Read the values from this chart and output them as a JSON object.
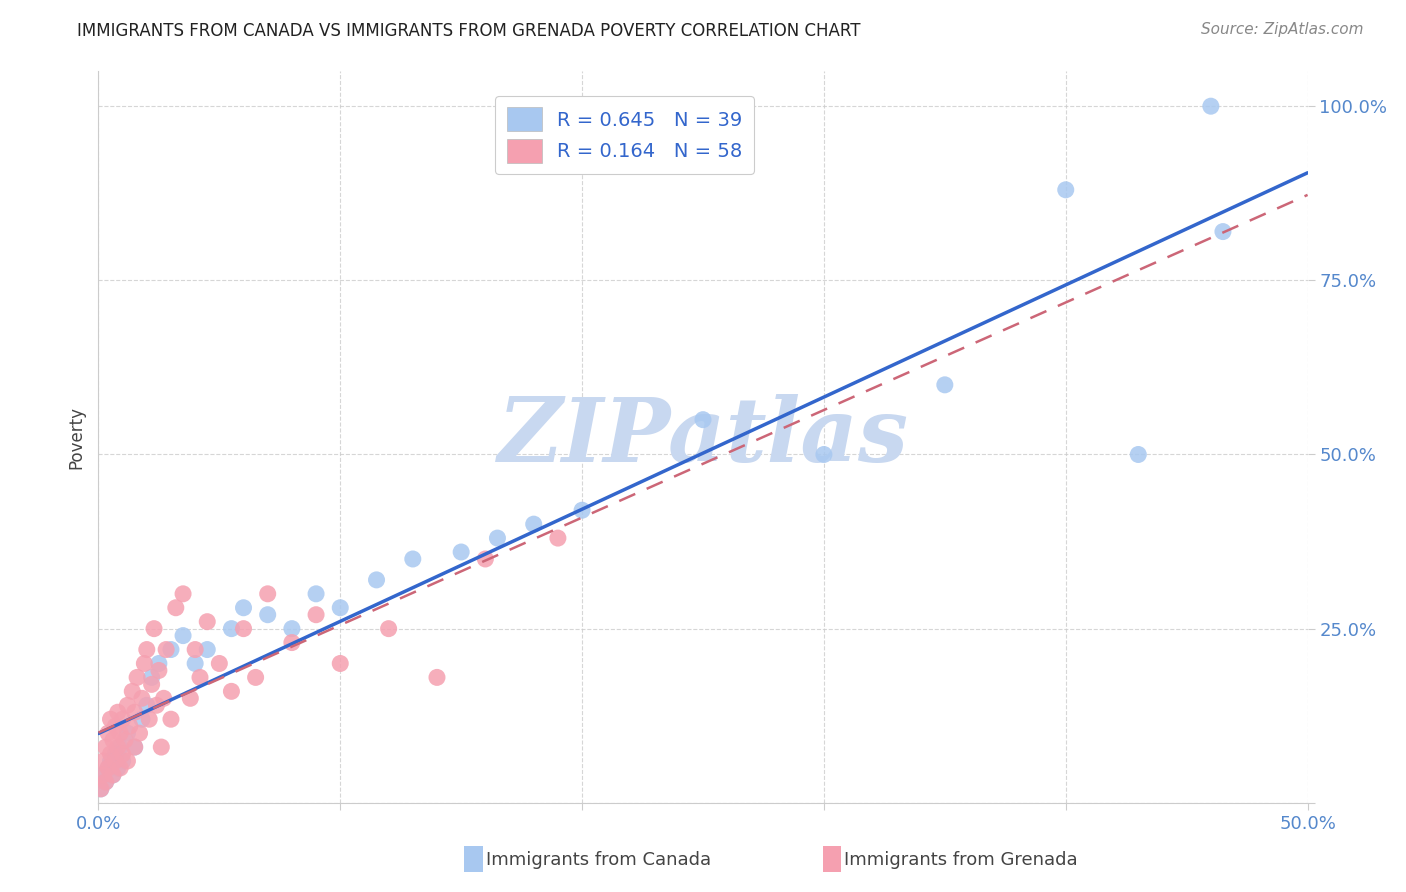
{
  "title": "IMMIGRANTS FROM CANADA VS IMMIGRANTS FROM GRENADA POVERTY CORRELATION CHART",
  "source": "Source: ZipAtlas.com",
  "ylabel": "Poverty",
  "xlim": [
    0.0,
    0.5
  ],
  "ylim": [
    0.0,
    1.05
  ],
  "canada_R": 0.645,
  "canada_N": 39,
  "grenada_R": 0.164,
  "grenada_N": 58,
  "canada_color": "#a8c8f0",
  "grenada_color": "#f5a0b0",
  "canada_line_color": "#3366cc",
  "grenada_line_color": "#cc6677",
  "watermark_color": "#c8d8f0",
  "canada_x": [
    0.001,
    0.002,
    0.003,
    0.004,
    0.005,
    0.006,
    0.007,
    0.008,
    0.009,
    0.01,
    0.012,
    0.015,
    0.018,
    0.02,
    0.022,
    0.025,
    0.03,
    0.035,
    0.04,
    0.045,
    0.055,
    0.06,
    0.07,
    0.08,
    0.09,
    0.1,
    0.115,
    0.13,
    0.15,
    0.165,
    0.18,
    0.2,
    0.25,
    0.3,
    0.35,
    0.4,
    0.43,
    0.46,
    0.465
  ],
  "canada_y": [
    0.02,
    0.04,
    0.03,
    0.05,
    0.06,
    0.04,
    0.07,
    0.05,
    0.08,
    0.06,
    0.1,
    0.08,
    0.12,
    0.14,
    0.18,
    0.2,
    0.22,
    0.24,
    0.2,
    0.22,
    0.25,
    0.28,
    0.27,
    0.25,
    0.3,
    0.28,
    0.32,
    0.35,
    0.36,
    0.38,
    0.4,
    0.42,
    0.55,
    0.5,
    0.6,
    0.88,
    0.5,
    1.0,
    0.82
  ],
  "grenada_x": [
    0.001,
    0.002,
    0.002,
    0.003,
    0.003,
    0.004,
    0.004,
    0.005,
    0.005,
    0.006,
    0.006,
    0.007,
    0.007,
    0.008,
    0.008,
    0.009,
    0.009,
    0.01,
    0.01,
    0.011,
    0.012,
    0.012,
    0.013,
    0.014,
    0.015,
    0.015,
    0.016,
    0.017,
    0.018,
    0.019,
    0.02,
    0.021,
    0.022,
    0.023,
    0.024,
    0.025,
    0.026,
    0.027,
    0.028,
    0.03,
    0.032,
    0.035,
    0.038,
    0.04,
    0.042,
    0.045,
    0.05,
    0.055,
    0.06,
    0.065,
    0.07,
    0.08,
    0.09,
    0.1,
    0.12,
    0.14,
    0.16,
    0.19
  ],
  "grenada_y": [
    0.02,
    0.04,
    0.06,
    0.03,
    0.08,
    0.05,
    0.1,
    0.07,
    0.12,
    0.04,
    0.09,
    0.06,
    0.11,
    0.08,
    0.13,
    0.05,
    0.1,
    0.07,
    0.12,
    0.09,
    0.14,
    0.06,
    0.11,
    0.16,
    0.08,
    0.13,
    0.18,
    0.1,
    0.15,
    0.2,
    0.22,
    0.12,
    0.17,
    0.25,
    0.14,
    0.19,
    0.08,
    0.15,
    0.22,
    0.12,
    0.28,
    0.3,
    0.15,
    0.22,
    0.18,
    0.26,
    0.2,
    0.16,
    0.25,
    0.18,
    0.3,
    0.23,
    0.27,
    0.2,
    0.25,
    0.18,
    0.35,
    0.38
  ],
  "x_tick_positions": [
    0.0,
    0.1,
    0.2,
    0.3,
    0.4,
    0.5
  ],
  "x_tick_labels": [
    "0.0%",
    "",
    "",
    "",
    "",
    "50.0%"
  ],
  "y_tick_positions": [
    0.0,
    0.25,
    0.5,
    0.75,
    1.0
  ],
  "y_tick_labels_right": [
    "",
    "25.0%",
    "50.0%",
    "75.0%",
    "100.0%"
  ],
  "grid_color": "#cccccc",
  "spine_color": "#cccccc",
  "tick_color": "#5588cc",
  "title_fontsize": 12,
  "source_fontsize": 11,
  "legend_text_color": "#333333",
  "legend_value_color": "#3366cc",
  "bottom_legend_label_canada": "Immigrants from Canada",
  "bottom_legend_label_grenada": "Immigrants from Grenada"
}
